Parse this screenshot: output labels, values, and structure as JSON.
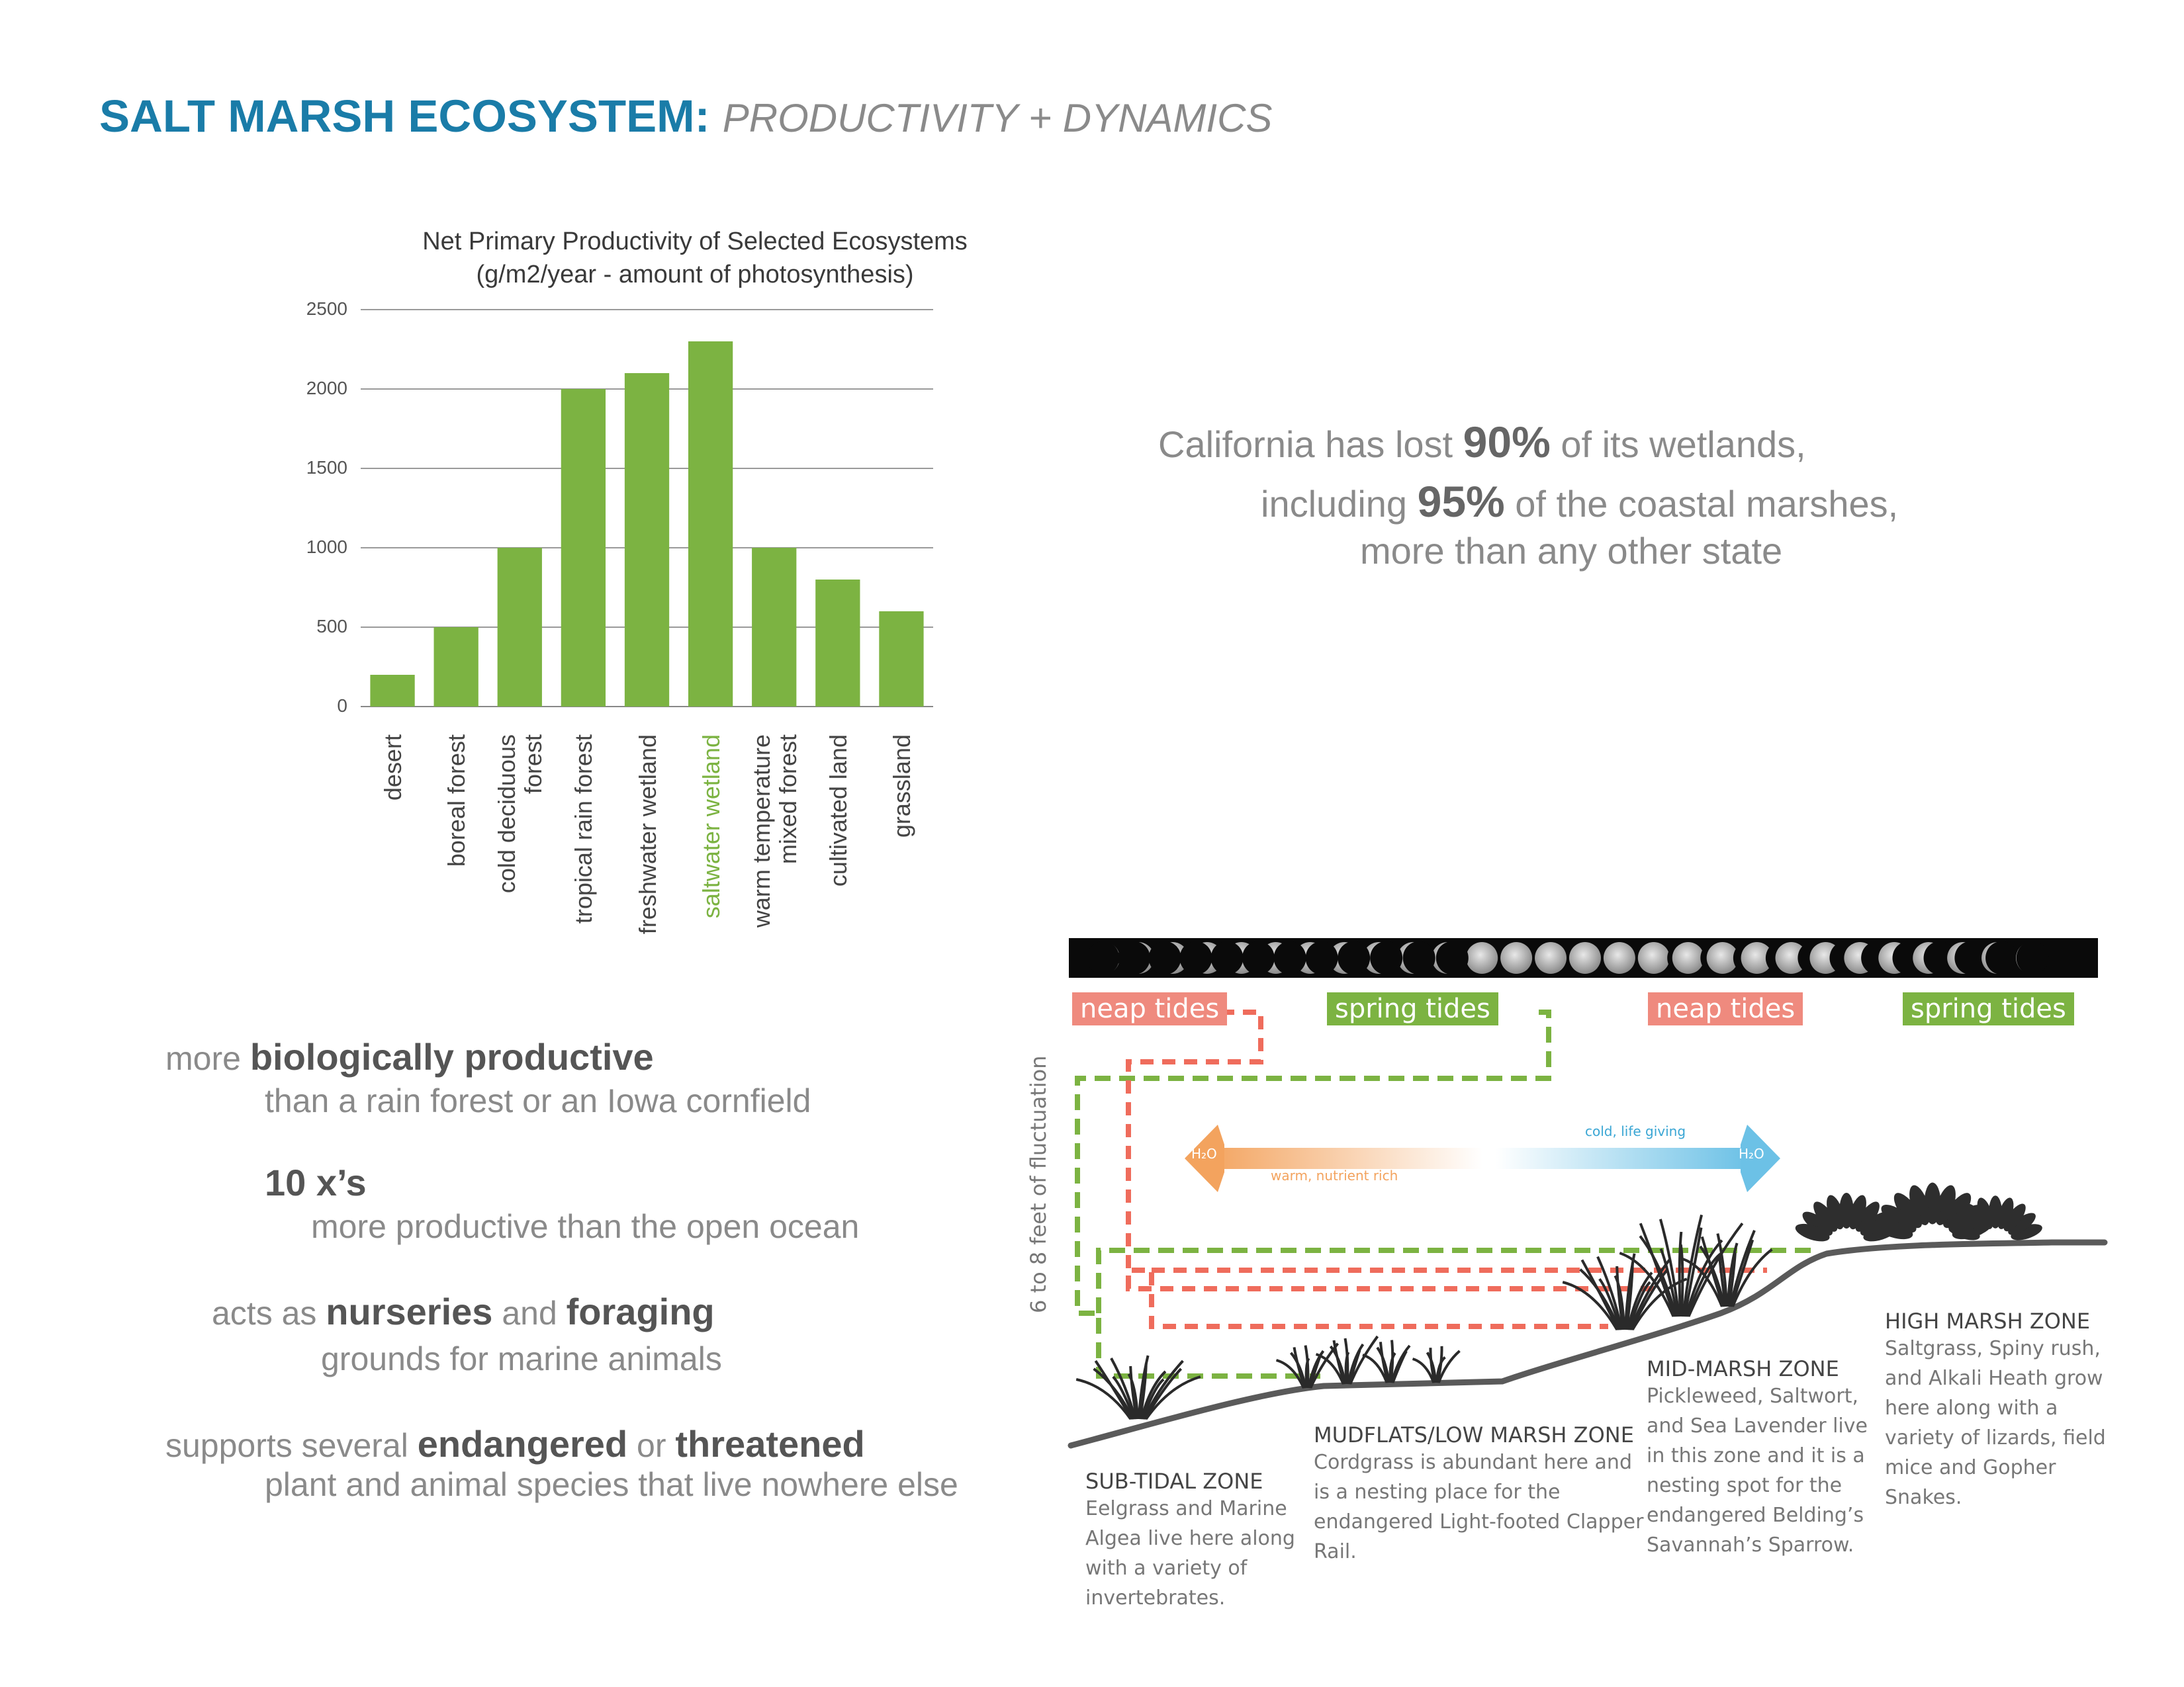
{
  "title": {
    "main": "SALT MARSH ECOSYSTEM:",
    "sub": "PRODUCTIVITY + DYNAMICS"
  },
  "chart_data": {
    "type": "bar",
    "title": "Net Primary Productivity of Selected Ecosystems",
    "subtitle": "(g/m2/year - amount of photosynthesis)",
    "categories": [
      "desert",
      "boreal forest",
      "cold deciduous forest",
      "tropical rain forest",
      "freshwater wetland",
      "saltwater wetland",
      "warm temperature mixed forest",
      "cultivated land",
      "grassland"
    ],
    "category_lines": [
      [
        "desert"
      ],
      [
        "boreal forest"
      ],
      [
        "cold deciduous",
        "forest"
      ],
      [
        "tropical rain forest"
      ],
      [
        "freshwater wetland"
      ],
      [
        "saltwater wetland"
      ],
      [
        "warm temperature",
        "mixed forest"
      ],
      [
        "cultivated land"
      ],
      [
        "grassland"
      ]
    ],
    "values": [
      200,
      500,
      1000,
      2000,
      2100,
      2300,
      1000,
      800,
      600
    ],
    "ylim": [
      0,
      2500
    ],
    "yticks": [
      0,
      500,
      1000,
      1500,
      2000,
      2500
    ],
    "ytick_labels": [
      "0",
      "500",
      "1000",
      "1500",
      "2000",
      "2500"
    ],
    "highlight_category": "saltwater wetland",
    "bar_color": "#7cb342",
    "highlight_color": "#7cb342",
    "grid": true,
    "legend": "none"
  },
  "stats": {
    "l1_pre": "California has lost ",
    "l1_bold": "90%",
    "l1_post": " of its wetlands,",
    "l2_pre": "including ",
    "l2_bold": "95%",
    "l2_post": " of the coastal marshes,",
    "l3": "more than any other state"
  },
  "bullets": {
    "b1_pre": "more ",
    "b1_bold": "biologically productive",
    "b1_line2": "than a rain forest or an Iowa cornfield",
    "b2_bold": "10 x’s",
    "b2_line2": "more productive than the open ocean",
    "b3_pre": "acts as ",
    "b3_bold1": "nurseries",
    "b3_mid": " and ",
    "b3_bold2": "foraging",
    "b3_line2": "grounds for marine animals",
    "b4_pre": "supports several ",
    "b4_bold1": "endangered",
    "b4_mid": " or ",
    "b4_bold2": "threatened",
    "b4_line2": "plant and animal species that live nowhere else"
  },
  "tides": {
    "neap1": "neap tides",
    "spring1": "spring tides",
    "neap2": "neap tides",
    "spring2": "spring tides"
  },
  "tide_colors": {
    "neap": "#ef8a7e",
    "spring": "#7cb342"
  },
  "fluctuation": "6 to 8 feet of fluctuation",
  "flow": {
    "left_h2o": "H₂O",
    "left_label": "warm, nutrient rich",
    "right_label": "cold, life giving",
    "right_h2o": "H₂O"
  },
  "zones": {
    "subtidal": {
      "title": "SUB-TIDAL ZONE",
      "desc": "Eelgrass and Marine Algea live here along with a variety of invertebrates."
    },
    "mudflats": {
      "title": "MUDFLATS/LOW MARSH ZONE",
      "desc": "Cordgrass is abundant here and is a nesting place for the endangered Light-footed Clapper Rail."
    },
    "midmarsh": {
      "title": "MID-MARSH ZONE",
      "desc": "Pickleweed, Saltwort, and Sea Lavender live in this zone and it is a nesting spot for the endangered Belding’s Savannah’s Sparrow."
    },
    "highmarsh": {
      "title": "HIGH MARSH ZONE",
      "desc": "Saltgrass, Spiny rush, and Alkali Heath grow here along with a variety of lizards, field mice and Gopher Snakes."
    }
  },
  "icons": {
    "moon_strip": "moon-phases-icon",
    "plants": "marsh-plant-icon",
    "arrows": "water-flow-arrow-icon"
  }
}
